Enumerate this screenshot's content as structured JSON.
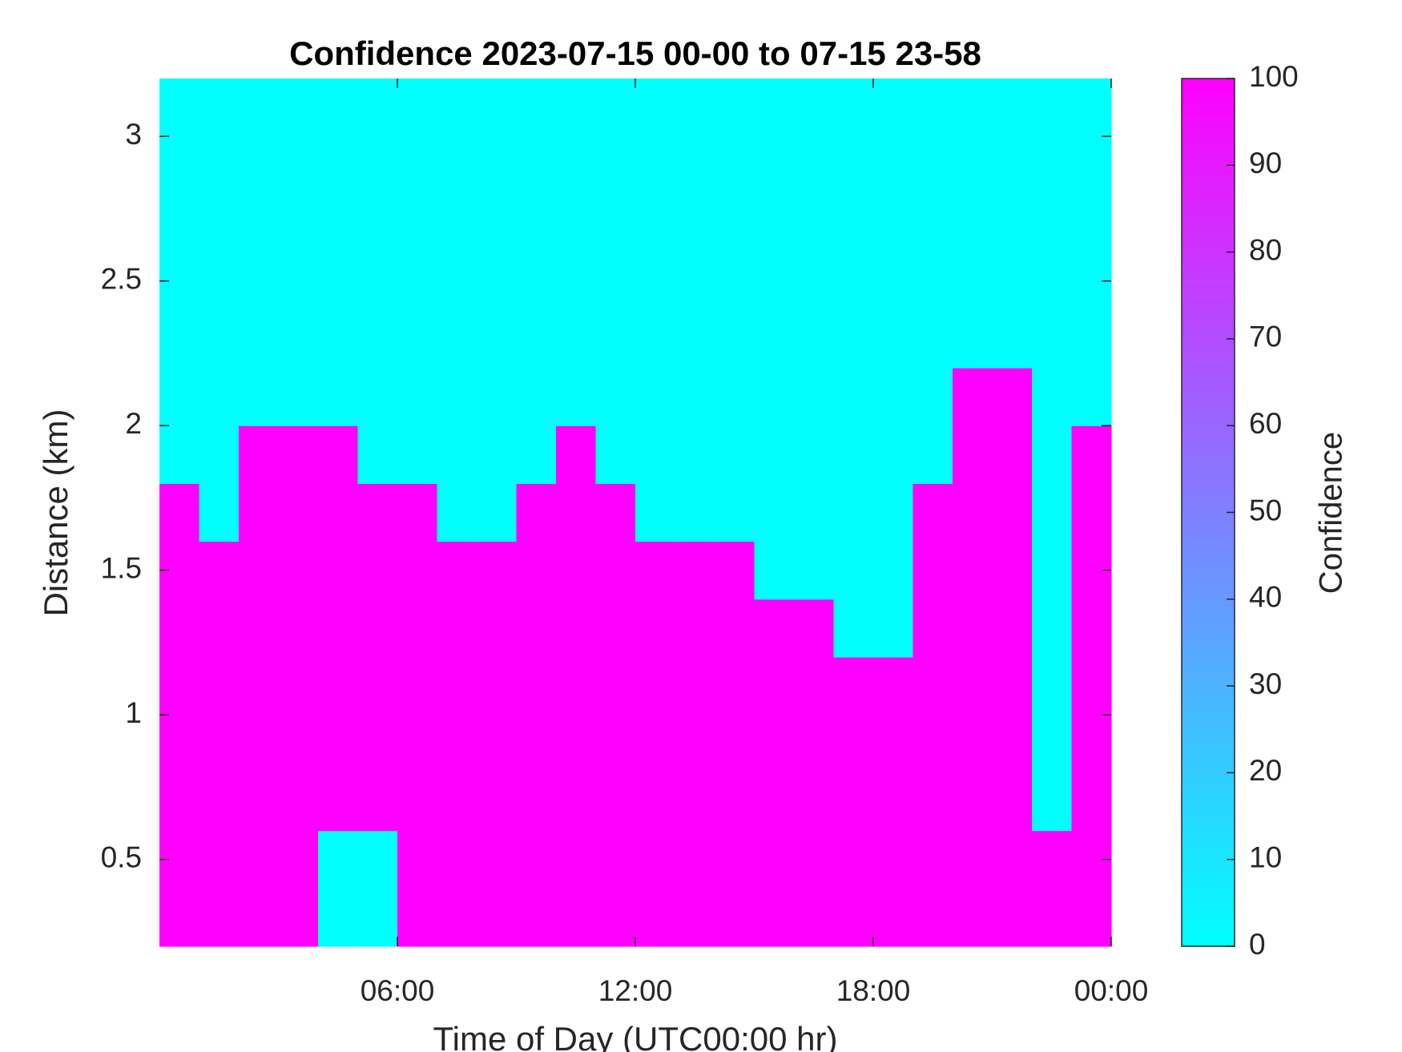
{
  "chart_data": {
    "type": "heatmap",
    "title": "Confidence 2023-07-15 00-00 to 07-15 23-58",
    "xlabel": "Time of Day (UTC00:00 hr)",
    "ylabel": "Distance (km)",
    "colorbar_label": "Confidence",
    "xbins": [
      0,
      1,
      2,
      3,
      4,
      5,
      6,
      7,
      8,
      9,
      10,
      11,
      12,
      13,
      14,
      15,
      16,
      17,
      18,
      19,
      20,
      21,
      22,
      23,
      24
    ],
    "ybins": [
      0.2,
      0.4,
      0.6,
      0.8,
      1.0,
      1.2,
      1.4,
      1.6,
      1.8,
      2.0,
      2.2,
      2.4,
      2.6,
      2.8,
      3.0,
      3.2
    ],
    "z": [
      [
        100,
        100,
        100,
        100,
        0,
        0,
        100,
        100,
        100,
        100,
        100,
        100,
        100,
        100,
        100,
        100,
        100,
        100,
        100,
        100,
        100,
        100,
        100,
        100
      ],
      [
        100,
        100,
        100,
        100,
        0,
        0,
        100,
        100,
        100,
        100,
        100,
        100,
        100,
        100,
        100,
        100,
        100,
        100,
        100,
        100,
        100,
        100,
        100,
        100
      ],
      [
        100,
        100,
        100,
        100,
        100,
        100,
        100,
        100,
        100,
        100,
        100,
        100,
        100,
        100,
        100,
        100,
        100,
        100,
        100,
        100,
        100,
        100,
        0,
        100
      ],
      [
        100,
        100,
        100,
        100,
        100,
        100,
        100,
        100,
        100,
        100,
        100,
        100,
        100,
        100,
        100,
        100,
        100,
        100,
        100,
        100,
        100,
        100,
        0,
        100
      ],
      [
        100,
        100,
        100,
        100,
        100,
        100,
        100,
        100,
        100,
        100,
        100,
        100,
        100,
        100,
        100,
        100,
        100,
        100,
        100,
        100,
        100,
        100,
        0,
        100
      ],
      [
        100,
        100,
        100,
        100,
        100,
        100,
        100,
        100,
        100,
        100,
        100,
        100,
        100,
        100,
        100,
        100,
        100,
        0,
        0,
        100,
        100,
        100,
        0,
        100
      ],
      [
        100,
        100,
        100,
        100,
        100,
        100,
        100,
        100,
        100,
        100,
        100,
        100,
        100,
        100,
        100,
        0,
        0,
        0,
        0,
        100,
        100,
        100,
        0,
        100
      ],
      [
        100,
        0,
        100,
        100,
        100,
        100,
        100,
        0,
        0,
        100,
        100,
        100,
        0,
        0,
        0,
        0,
        0,
        0,
        0,
        100,
        100,
        100,
        0,
        100
      ],
      [
        0,
        0,
        100,
        100,
        100,
        0,
        0,
        0,
        0,
        0,
        100,
        0,
        0,
        0,
        0,
        0,
        0,
        0,
        0,
        0,
        100,
        100,
        0,
        100
      ],
      [
        0,
        0,
        0,
        0,
        0,
        0,
        0,
        0,
        0,
        0,
        0,
        0,
        0,
        0,
        0,
        0,
        0,
        0,
        0,
        0,
        100,
        100,
        0,
        0
      ],
      [
        0,
        0,
        0,
        0,
        0,
        0,
        0,
        0,
        0,
        0,
        0,
        0,
        0,
        0,
        0,
        0,
        0,
        0,
        0,
        0,
        0,
        0,
        0,
        0
      ],
      [
        0,
        0,
        0,
        0,
        0,
        0,
        0,
        0,
        0,
        0,
        0,
        0,
        0,
        0,
        0,
        0,
        0,
        0,
        0,
        0,
        0,
        0,
        0,
        0
      ],
      [
        0,
        0,
        0,
        0,
        0,
        0,
        0,
        0,
        0,
        0,
        0,
        0,
        0,
        0,
        0,
        0,
        0,
        0,
        0,
        0,
        0,
        0,
        0,
        0
      ],
      [
        0,
        0,
        0,
        0,
        0,
        0,
        0,
        0,
        0,
        0,
        0,
        0,
        0,
        0,
        0,
        0,
        0,
        0,
        0,
        0,
        0,
        0,
        0,
        0
      ],
      [
        0,
        0,
        0,
        0,
        0,
        0,
        0,
        0,
        0,
        0,
        0,
        0,
        0,
        0,
        0,
        0,
        0,
        0,
        0,
        0,
        0,
        0,
        0,
        0
      ]
    ],
    "colormap": [
      "#00ffff",
      "#ff00ff"
    ],
    "clim": [
      0,
      100
    ],
    "cticks": [
      0,
      10,
      20,
      30,
      40,
      50,
      60,
      70,
      80,
      90,
      100
    ],
    "xlim": [
      0,
      24
    ],
    "xticks": [
      {
        "value": 6,
        "label": "06:00"
      },
      {
        "value": 12,
        "label": "12:00"
      },
      {
        "value": 18,
        "label": "18:00"
      },
      {
        "value": 24,
        "label": "00:00"
      }
    ],
    "ylim": [
      0.2,
      3.2
    ],
    "yticks": [
      0.5,
      1,
      1.5,
      2,
      2.5,
      3
    ]
  }
}
